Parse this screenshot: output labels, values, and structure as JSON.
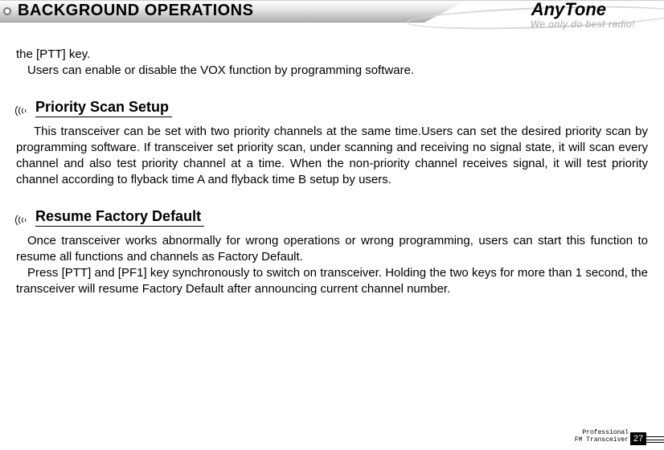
{
  "header": {
    "title": "BACKGROUND OPERATIONS",
    "brand": "AnyTone",
    "slogan": "We only do best radio!"
  },
  "intro": {
    "line1": "the [PTT] key.",
    "line2": "Users can enable or disable the VOX function by programming software."
  },
  "section1": {
    "heading": "Priority Scan Setup",
    "body": "This transceiver can be set with two priority channels at the same time.Users can set the desired priority scan by programming software. If transceiver set priority scan, under scanning and receiving no signal state, it will scan every channel and also test priority channel at a time. When the non-priority channel receives signal, it will test priority channel according to flyback time A and flyback time B setup by users."
  },
  "section2": {
    "heading": "Resume Factory Default",
    "body1": "Once transceiver works abnormally for wrong operations or wrong programming, users can start this function to resume all functions and channels as Factory Default.",
    "body2": "Press [PTT] and [PF1] key synchronously to switch on transceiver. Holding the two keys for more than 1 second, the transceiver will resume Factory Default after announcing current channel number."
  },
  "footer": {
    "label1": "Professional",
    "label2": "FM Transceiver",
    "page": "27"
  },
  "colors": {
    "text": "#000000",
    "bg": "#ffffff",
    "header_grad_top": "#fdfdfd",
    "header_grad_bot": "#b0b0b0",
    "slogan": "#a8a8a8"
  }
}
